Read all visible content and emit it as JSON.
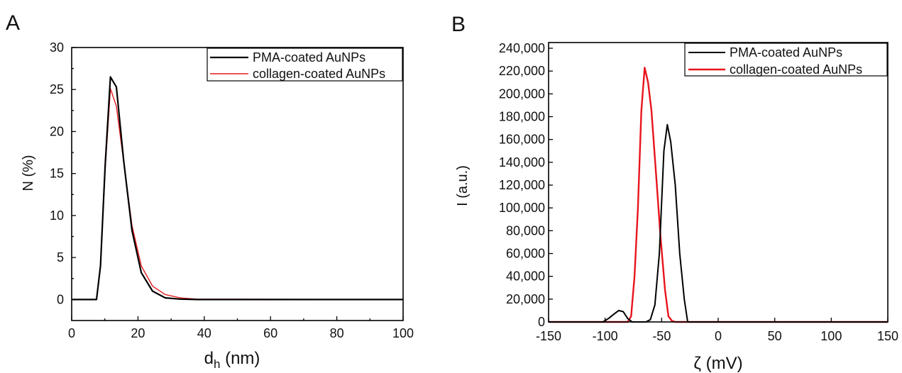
{
  "chart_data": [
    {
      "panel_label": "A",
      "type": "line",
      "title": "",
      "xlabel_main": "d",
      "xlabel_sub": "h",
      "xlabel_unit": " (nm)",
      "ylabel": "N (%)",
      "xlim": [
        0,
        100
      ],
      "ylim": [
        -2.5,
        30
      ],
      "xticks": [
        0,
        20,
        40,
        60,
        80,
        100
      ],
      "xtick_labels": [
        "0",
        "20",
        "40",
        "60",
        "80",
        "100"
      ],
      "yticks": [
        0,
        5,
        10,
        15,
        20,
        25,
        30
      ],
      "ytick_labels": [
        "0",
        "5",
        "10",
        "15",
        "20",
        "25",
        "30"
      ],
      "grid": false,
      "legend_position": "top-right",
      "series": [
        {
          "name": "PMA-coated AuNPs",
          "color": "#000000",
          "x": [
            0,
            7.5,
            8.7,
            10.1,
            11.7,
            13.5,
            15.7,
            18.2,
            21.0,
            24.4,
            28.2,
            32.7,
            37.8,
            100
          ],
          "y": [
            0,
            0,
            4.0,
            16.0,
            26.5,
            25.3,
            16.5,
            8.2,
            3.2,
            1.0,
            0.2,
            0.05,
            0,
            0
          ]
        },
        {
          "name": "collagen-coated AuNPs",
          "color": "#e41a1c",
          "x": [
            0,
            7.5,
            8.7,
            10.1,
            11.7,
            13.5,
            15.7,
            18.2,
            21.0,
            24.4,
            28.2,
            32.7,
            37.8,
            100
          ],
          "y": [
            0,
            0,
            4.2,
            15.5,
            25.1,
            23.0,
            16.4,
            8.8,
            4.0,
            1.6,
            0.6,
            0.2,
            0.05,
            0
          ]
        }
      ]
    },
    {
      "panel_label": "B",
      "type": "line",
      "title": "",
      "xlabel": "ζ (mV)",
      "ylabel": "I (a.u.)",
      "xlim": [
        -150,
        150
      ],
      "ylim": [
        0,
        245000
      ],
      "xticks": [
        -150,
        -100,
        -50,
        0,
        50,
        100,
        150
      ],
      "xtick_labels": [
        "-150",
        "-100",
        "-50",
        "0",
        "50",
        "100",
        "150"
      ],
      "yticks": [
        0,
        20000,
        40000,
        60000,
        80000,
        100000,
        120000,
        140000,
        160000,
        180000,
        200000,
        220000,
        240000
      ],
      "ytick_labels": [
        "0",
        "20,000",
        "40,000",
        "60,000",
        "80,000",
        "100,000",
        "120,000",
        "140,000",
        "160,000",
        "180,000",
        "200,000",
        "220,000",
        "240,000"
      ],
      "grid": false,
      "legend_position": "top-right",
      "series": [
        {
          "name": "PMA-coated AuNPs",
          "color": "#000000",
          "x": [
            -150,
            -102,
            -97,
            -92,
            -88,
            -84,
            -80,
            -76,
            -72,
            -68,
            -64,
            -60,
            -56,
            -52,
            -48,
            -45,
            -42,
            -38,
            -34,
            -30,
            -27,
            150
          ],
          "y": [
            0,
            0,
            3000,
            7000,
            10000,
            9000,
            3000,
            0,
            0,
            0,
            0,
            2000,
            15000,
            60000,
            150000,
            173000,
            158000,
            120000,
            60000,
            20000,
            0,
            0
          ]
        },
        {
          "name": "collagen-coated AuNPs",
          "color": "#e8141c",
          "x": [
            -150,
            -80,
            -77,
            -74,
            -71,
            -68,
            -65,
            -62,
            -59,
            -55,
            -51,
            -47,
            -44,
            -41,
            -38,
            -35,
            150
          ],
          "y": [
            0,
            0,
            5000,
            40000,
            100000,
            185000,
            223000,
            210000,
            185000,
            130000,
            75000,
            28000,
            5000,
            1000,
            0,
            0,
            0
          ]
        }
      ]
    }
  ]
}
